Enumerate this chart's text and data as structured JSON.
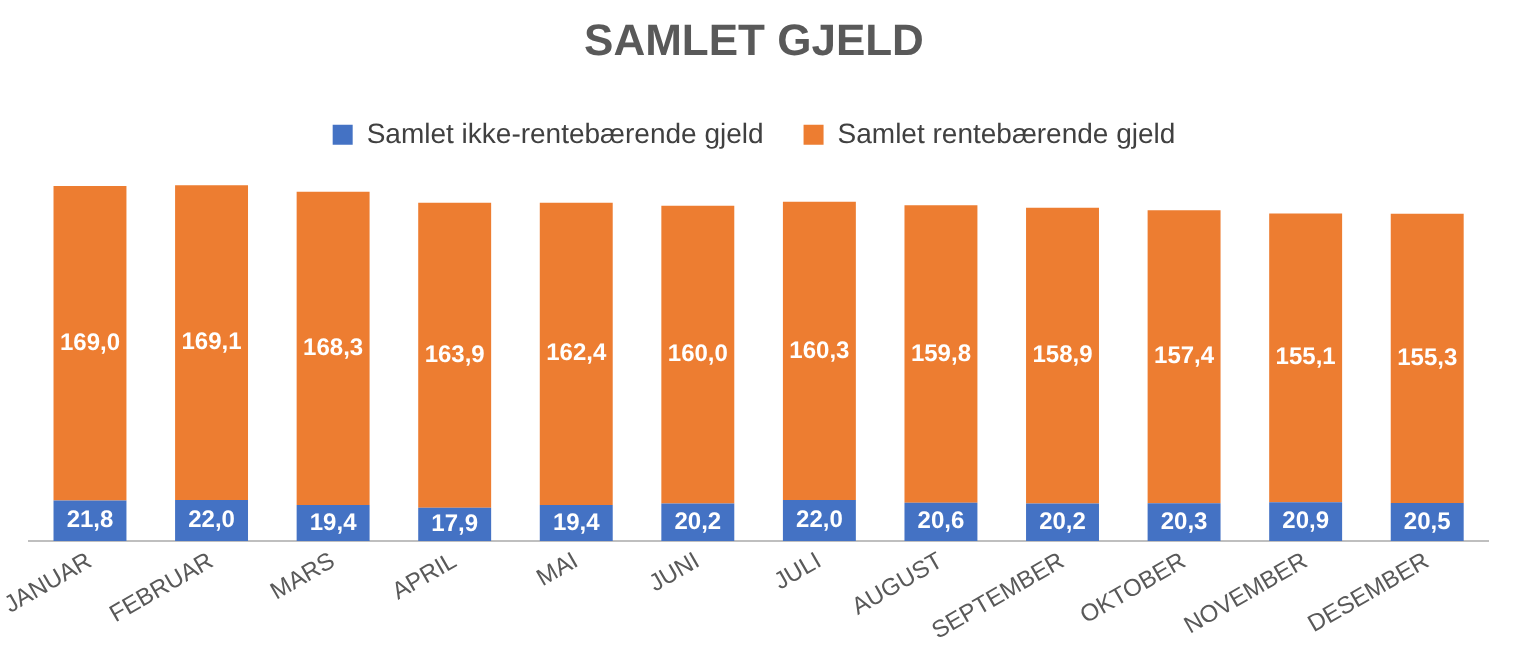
{
  "chart_data": {
    "type": "bar",
    "title": "SAMLET GJELD",
    "stacked": true,
    "legend": "top",
    "grid": false,
    "tick_labels": "x",
    "categories": [
      "JANUAR",
      "FEBRUAR",
      "MARS",
      "APRIL",
      "MAI",
      "JUNI",
      "JULI",
      "AUGUST",
      "SEPTEMBER",
      "OKTOBER",
      "NOVEMBER",
      "DESEMBER"
    ],
    "series": [
      {
        "name": "Samlet ikke-rentebærende gjeld",
        "color": "#4472c4",
        "values": [
          21.8,
          22.0,
          19.4,
          17.9,
          19.4,
          20.2,
          22.0,
          20.6,
          20.2,
          20.3,
          20.9,
          20.5
        ],
        "value_labels": [
          "21,8",
          "22,0",
          "19,4",
          "17,9",
          "19,4",
          "20,2",
          "22,0",
          "20,6",
          "20,2",
          "20,3",
          "20,9",
          "20,5"
        ]
      },
      {
        "name": "Samlet rentebærende gjeld",
        "color": "#ed7d31",
        "values": [
          169.0,
          169.1,
          168.3,
          163.9,
          162.4,
          160.0,
          160.3,
          159.8,
          158.9,
          157.4,
          155.1,
          155.3
        ],
        "value_labels": [
          "169,0",
          "169,1",
          "168,3",
          "163,9",
          "162,4",
          "160,0",
          "160,3",
          "159,8",
          "158,9",
          "157,4",
          "155,1",
          "155,3"
        ]
      }
    ]
  }
}
